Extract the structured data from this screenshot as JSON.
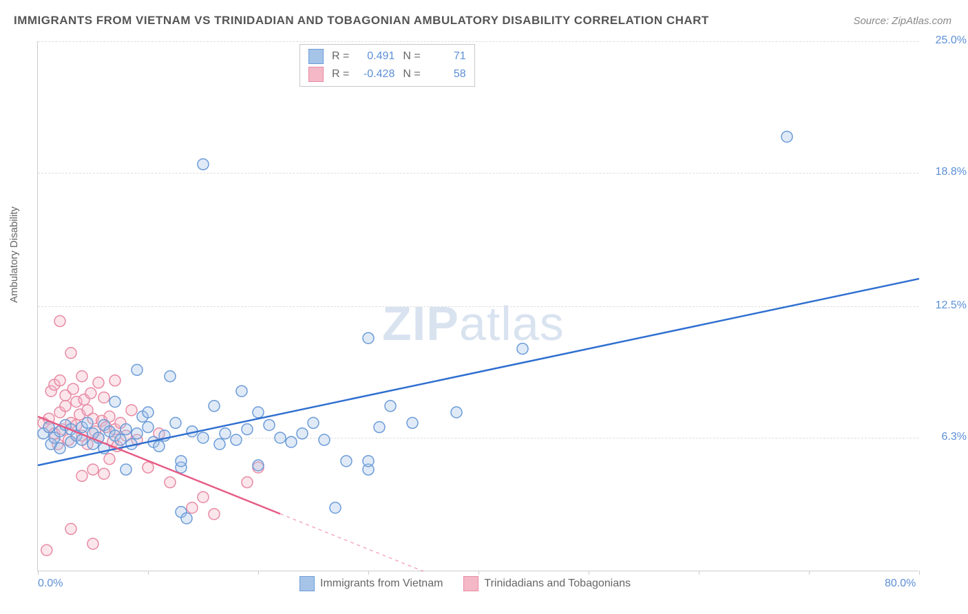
{
  "title": "IMMIGRANTS FROM VIETNAM VS TRINIDADIAN AND TOBAGONIAN AMBULATORY DISABILITY CORRELATION CHART",
  "source": "Source: ZipAtlas.com",
  "y_axis_label": "Ambulatory Disability",
  "watermark_a": "ZIP",
  "watermark_b": "atlas",
  "chart": {
    "type": "scatter",
    "xlim": [
      0,
      80
    ],
    "ylim": [
      0,
      25
    ],
    "x_ticks": [
      0,
      10,
      20,
      30,
      40,
      50,
      60,
      70,
      80
    ],
    "x_tick_labels": {
      "0": "0.0%",
      "80": "80.0%"
    },
    "y_ticks": [
      6.3,
      12.5,
      18.8,
      25.0
    ],
    "y_tick_labels": [
      "6.3%",
      "12.5%",
      "18.8%",
      "25.0%"
    ],
    "grid_color": "#dddddd",
    "background_color": "#ffffff",
    "axis_color": "#cccccc",
    "tick_label_color": "#5b8fd6",
    "series": [
      {
        "name": "Immigrants from Vietnam",
        "color_fill": "#a6c4e8",
        "color_stroke": "#6a9bd8",
        "line_color": "#2f6fd0",
        "marker_radius": 8,
        "r_value": "0.491",
        "n_value": "71",
        "trend": {
          "x1": 0,
          "y1": 5.0,
          "x2": 80,
          "y2": 13.8,
          "extrapolate_from_x": null
        },
        "points": [
          [
            0.5,
            6.5
          ],
          [
            1,
            6.8
          ],
          [
            1.2,
            6.0
          ],
          [
            1.5,
            6.3
          ],
          [
            2,
            6.6
          ],
          [
            2,
            5.8
          ],
          [
            2.5,
            6.9
          ],
          [
            3,
            6.1
          ],
          [
            3,
            6.7
          ],
          [
            3.5,
            6.4
          ],
          [
            4,
            6.2
          ],
          [
            4,
            6.8
          ],
          [
            4.5,
            7.0
          ],
          [
            5,
            6.0
          ],
          [
            5,
            6.5
          ],
          [
            5.5,
            6.3
          ],
          [
            6,
            6.9
          ],
          [
            6,
            5.8
          ],
          [
            6.5,
            6.6
          ],
          [
            7,
            6.4
          ],
          [
            7,
            8.0
          ],
          [
            7.5,
            6.2
          ],
          [
            8,
            6.7
          ],
          [
            8,
            4.8
          ],
          [
            8.5,
            6.0
          ],
          [
            9,
            9.5
          ],
          [
            9,
            6.5
          ],
          [
            9.5,
            7.3
          ],
          [
            10,
            7.5
          ],
          [
            10,
            6.8
          ],
          [
            10.5,
            6.1
          ],
          [
            11,
            5.9
          ],
          [
            11.5,
            6.4
          ],
          [
            12,
            9.2
          ],
          [
            12.5,
            7.0
          ],
          [
            13,
            4.9
          ],
          [
            13,
            5.2
          ],
          [
            13,
            2.8
          ],
          [
            13.5,
            2.5
          ],
          [
            14,
            6.6
          ],
          [
            15,
            19.2
          ],
          [
            15,
            6.3
          ],
          [
            16,
            7.8
          ],
          [
            16.5,
            6.0
          ],
          [
            17,
            6.5
          ],
          [
            18,
            6.2
          ],
          [
            18.5,
            8.5
          ],
          [
            19,
            6.7
          ],
          [
            20,
            7.5
          ],
          [
            20,
            5.0
          ],
          [
            21,
            6.9
          ],
          [
            22,
            6.3
          ],
          [
            23,
            6.1
          ],
          [
            24,
            6.5
          ],
          [
            25,
            7.0
          ],
          [
            26,
            6.2
          ],
          [
            27,
            3.0
          ],
          [
            28,
            5.2
          ],
          [
            30,
            11.0
          ],
          [
            30,
            4.8
          ],
          [
            30,
            5.2
          ],
          [
            31,
            6.8
          ],
          [
            32,
            7.8
          ],
          [
            34,
            7.0
          ],
          [
            38,
            7.5
          ],
          [
            44,
            10.5
          ],
          [
            68,
            20.5
          ]
        ]
      },
      {
        "name": "Trinidadians and Tobagonians",
        "color_fill": "#f4b8c6",
        "color_stroke": "#e88aa3",
        "line_color": "#e65a84",
        "marker_radius": 8,
        "r_value": "-0.428",
        "n_value": "58",
        "trend": {
          "x1": 0,
          "y1": 7.3,
          "x2": 35,
          "y2": 0,
          "extrapolate_from_x": 22
        },
        "points": [
          [
            0.5,
            7.0
          ],
          [
            0.8,
            1.0
          ],
          [
            1,
            6.8
          ],
          [
            1,
            7.2
          ],
          [
            1.2,
            8.5
          ],
          [
            1.5,
            6.5
          ],
          [
            1.5,
            8.8
          ],
          [
            1.8,
            6.0
          ],
          [
            2,
            7.5
          ],
          [
            2,
            9.0
          ],
          [
            2,
            11.8
          ],
          [
            2.2,
            6.7
          ],
          [
            2.5,
            7.8
          ],
          [
            2.5,
            8.3
          ],
          [
            2.8,
            6.2
          ],
          [
            3,
            10.3
          ],
          [
            3,
            7.0
          ],
          [
            3,
            2.0
          ],
          [
            3.2,
            8.6
          ],
          [
            3.5,
            6.9
          ],
          [
            3.5,
            8.0
          ],
          [
            3.8,
            7.4
          ],
          [
            4,
            9.2
          ],
          [
            4,
            6.4
          ],
          [
            4,
            4.5
          ],
          [
            4.2,
            8.1
          ],
          [
            4.5,
            6.0
          ],
          [
            4.5,
            7.6
          ],
          [
            4.8,
            8.4
          ],
          [
            5,
            4.8
          ],
          [
            5,
            7.2
          ],
          [
            5,
            1.3
          ],
          [
            5.2,
            6.6
          ],
          [
            5.5,
            8.9
          ],
          [
            5.5,
            6.3
          ],
          [
            5.8,
            7.1
          ],
          [
            6,
            4.6
          ],
          [
            6,
            8.2
          ],
          [
            6.2,
            6.8
          ],
          [
            6.5,
            5.3
          ],
          [
            6.5,
            7.3
          ],
          [
            6.8,
            6.1
          ],
          [
            7,
            9.0
          ],
          [
            7,
            6.7
          ],
          [
            7.2,
            5.9
          ],
          [
            7.5,
            7.0
          ],
          [
            8,
            6.4
          ],
          [
            8.5,
            7.6
          ],
          [
            9,
            6.2
          ],
          [
            10,
            4.9
          ],
          [
            11,
            6.5
          ],
          [
            12,
            4.2
          ],
          [
            14,
            3.0
          ],
          [
            15,
            3.5
          ],
          [
            16,
            2.7
          ],
          [
            19,
            4.2
          ],
          [
            20,
            4.9
          ]
        ]
      }
    ]
  },
  "legend_top": {
    "r_label": "R =",
    "n_label": "N ="
  },
  "legend_bottom": {
    "series1": "Immigrants from Vietnam",
    "series2": "Trinidadians and Tobagonians"
  }
}
